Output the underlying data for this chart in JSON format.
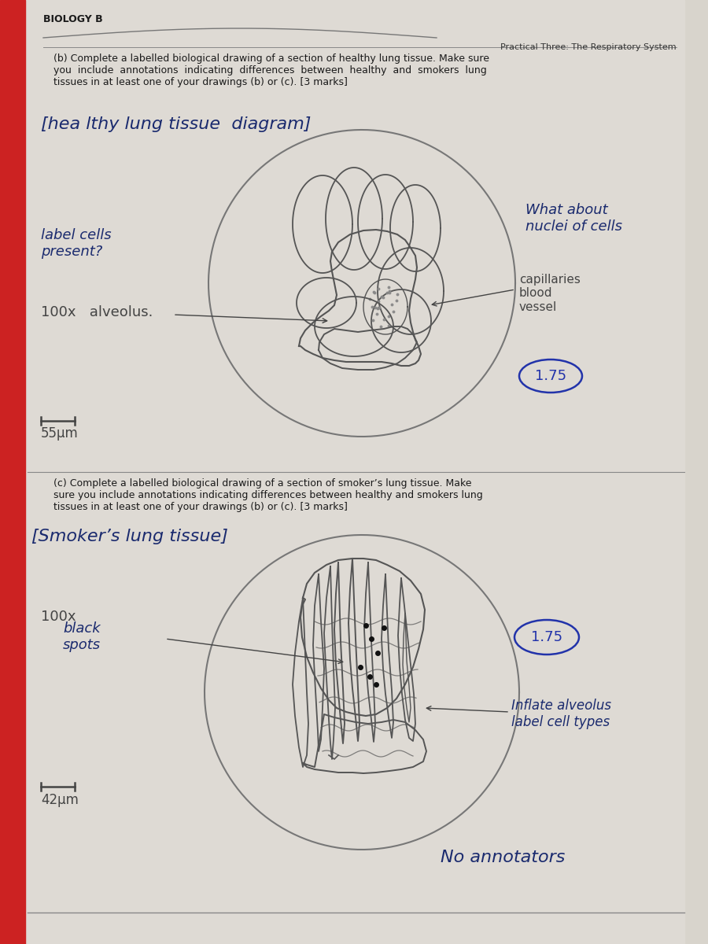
{
  "page_bg": "#d8d4cc",
  "paper_bg": "#e8e6e0",
  "header_text": "BIOLOGY B",
  "subheader_text": "Practical Three: The Respiratory System",
  "section_b_text": "(b) Complete a labelled biological drawing of a section of healthy lung tissue. Make sure\nyou  include  annotations  indicating  differences  between  healthy  and  smokers  lung\ntissues in at least one of your drawings (b) or (c). [3 marks]",
  "section_b_handwritten": "[hea lthy lung tissue  diagram]",
  "section_c_text": "(c) Complete a labelled biological drawing of a section of smoker’s lung tissue. Make\nsure you include annotations indicating differences between healthy and smokers lung\ntissues in at least one of your drawings (b) or (c). [3 marks]",
  "section_c_handwritten": "[Smoker’s lung tissue]",
  "label_cells": "label cells\npresent?",
  "what_about": "What about\nnuclei of cells",
  "mag_b": "100x   alveolus.",
  "capillaries": "capillaries\nblood\nvessel",
  "scale_b": "55μm",
  "score_b": "1.75",
  "black_spots": "black\nspots",
  "mag_c": "100x",
  "scale_c": "42μm",
  "score_c": "1.75",
  "inflate": "Inflate alveolus\nlabel cell types",
  "no_annotations": "No annotators",
  "text_dark": "#1a1a1a",
  "text_blue": "#1a2a6e",
  "text_pencil": "#444444",
  "draw_color": "#555555",
  "circle_color": "#777777"
}
